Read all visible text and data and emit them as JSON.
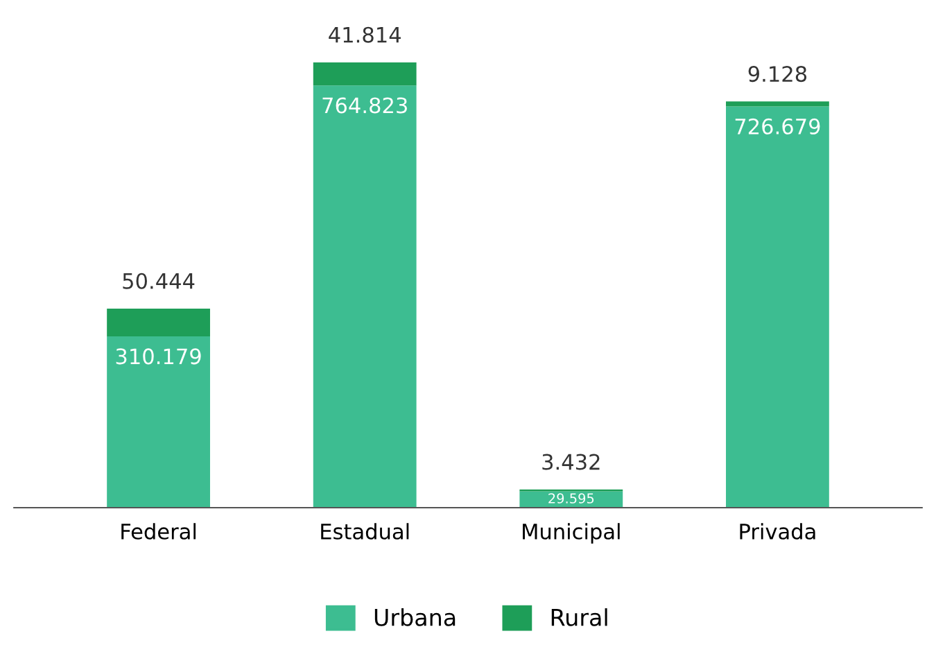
{
  "chart_data": {
    "type": "bar",
    "stacked": true,
    "categories": [
      "Federal",
      "Estadual",
      "Municipal",
      "Privada"
    ],
    "series": [
      {
        "name": "Urbana",
        "color": "#3dbd91",
        "values": [
          310179,
          764823,
          29595,
          726679
        ],
        "value_labels": [
          "310.179",
          "764.823",
          "29.595",
          "726.679"
        ]
      },
      {
        "name": "Rural",
        "color": "#1e9e58",
        "values": [
          50444,
          41814,
          3432,
          9128
        ],
        "value_labels": [
          "50.444",
          "41.814",
          "3.432",
          "9.128"
        ]
      }
    ],
    "tick_labels": "x",
    "legend": "bottom",
    "grid": false
  }
}
